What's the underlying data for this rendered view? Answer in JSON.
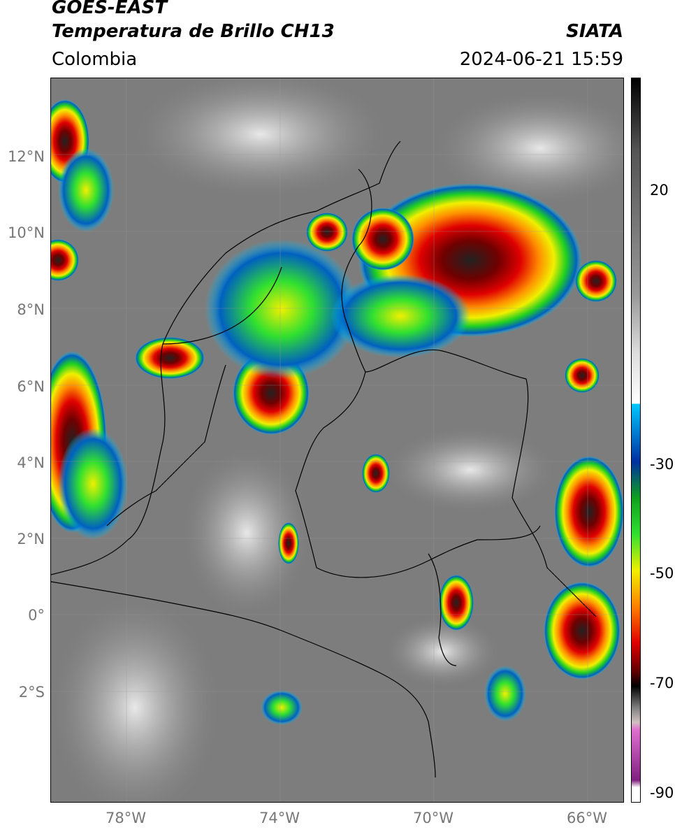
{
  "header": {
    "satellite": "GOES-EAST",
    "product": "Temperatura de Brillo CH13",
    "org": "SIATA",
    "region": "Colombia",
    "datetime": "2024-06-21 15:59"
  },
  "map": {
    "lat_labels": [
      "12°N",
      "10°N",
      "8°N",
      "6°N",
      "4°N",
      "2°N",
      "0°",
      "2°S"
    ],
    "lon_labels": [
      "78°W",
      "74°W",
      "70°W",
      "66°W"
    ]
  },
  "colorbar": {
    "tick_labels": [
      "20",
      "-30",
      "-50",
      "-70",
      "-90"
    ],
    "colors": [
      "#000000",
      "#555555",
      "#999999",
      "#dddddd",
      "#ffffff",
      "#00c8ff",
      "#0030a0",
      "#10a020",
      "#30e030",
      "#f0f000",
      "#ff8000",
      "#e00000",
      "#600000",
      "#000000",
      "#808080",
      "#d0c0c0",
      "#e070d0",
      "#802080",
      "#ffffff"
    ]
  }
}
